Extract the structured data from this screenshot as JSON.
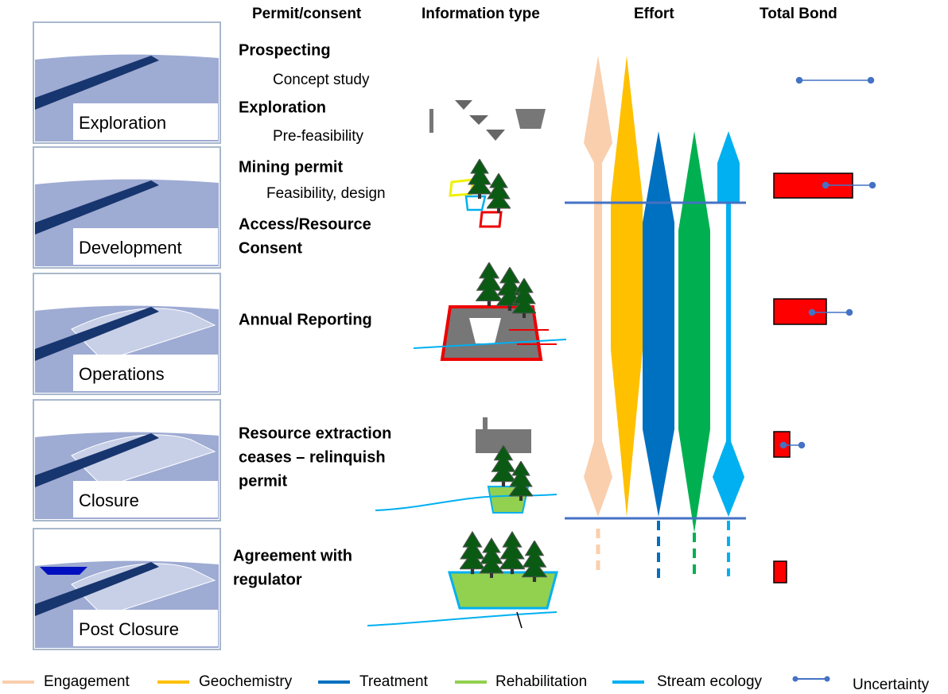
{
  "headers": [
    "Permit/consent",
    "Information type",
    "Effort",
    "Total Bond"
  ],
  "stages": [
    "Exploration",
    "Development",
    "Operations",
    "Closure",
    "Post Closure"
  ],
  "permits": [
    {
      "lines": [
        "Prospecting"
      ],
      "detail": "Concept study"
    },
    {
      "lines": [
        "Exploration"
      ],
      "detail": "Pre-feasibility"
    },
    {
      "lines": [
        "Mining permit"
      ],
      "detail": "Feasibility, design"
    },
    {
      "lines": [
        "Access/Resource",
        "Consent"
      ]
    },
    {
      "lines": [
        "Annual Reporting"
      ]
    },
    {
      "lines": [
        "Resource extraction",
        "ceases – relinquish",
        "permit"
      ]
    },
    {
      "lines": [
        "Agreement with",
        "regulator"
      ]
    }
  ],
  "legend": [
    {
      "name": "Engagement",
      "color": "#f9cfae"
    },
    {
      "name": "Geochemistry",
      "color": "#ffc000"
    },
    {
      "name": "Treatment",
      "color": "#0070c0"
    },
    {
      "name": "Rehabilitation",
      "color": "#92d050"
    },
    {
      "name": "Stream ecology",
      "color": "#00b0f0"
    },
    {
      "name": "Uncertainty",
      "color": "#4472c4"
    }
  ]
}
